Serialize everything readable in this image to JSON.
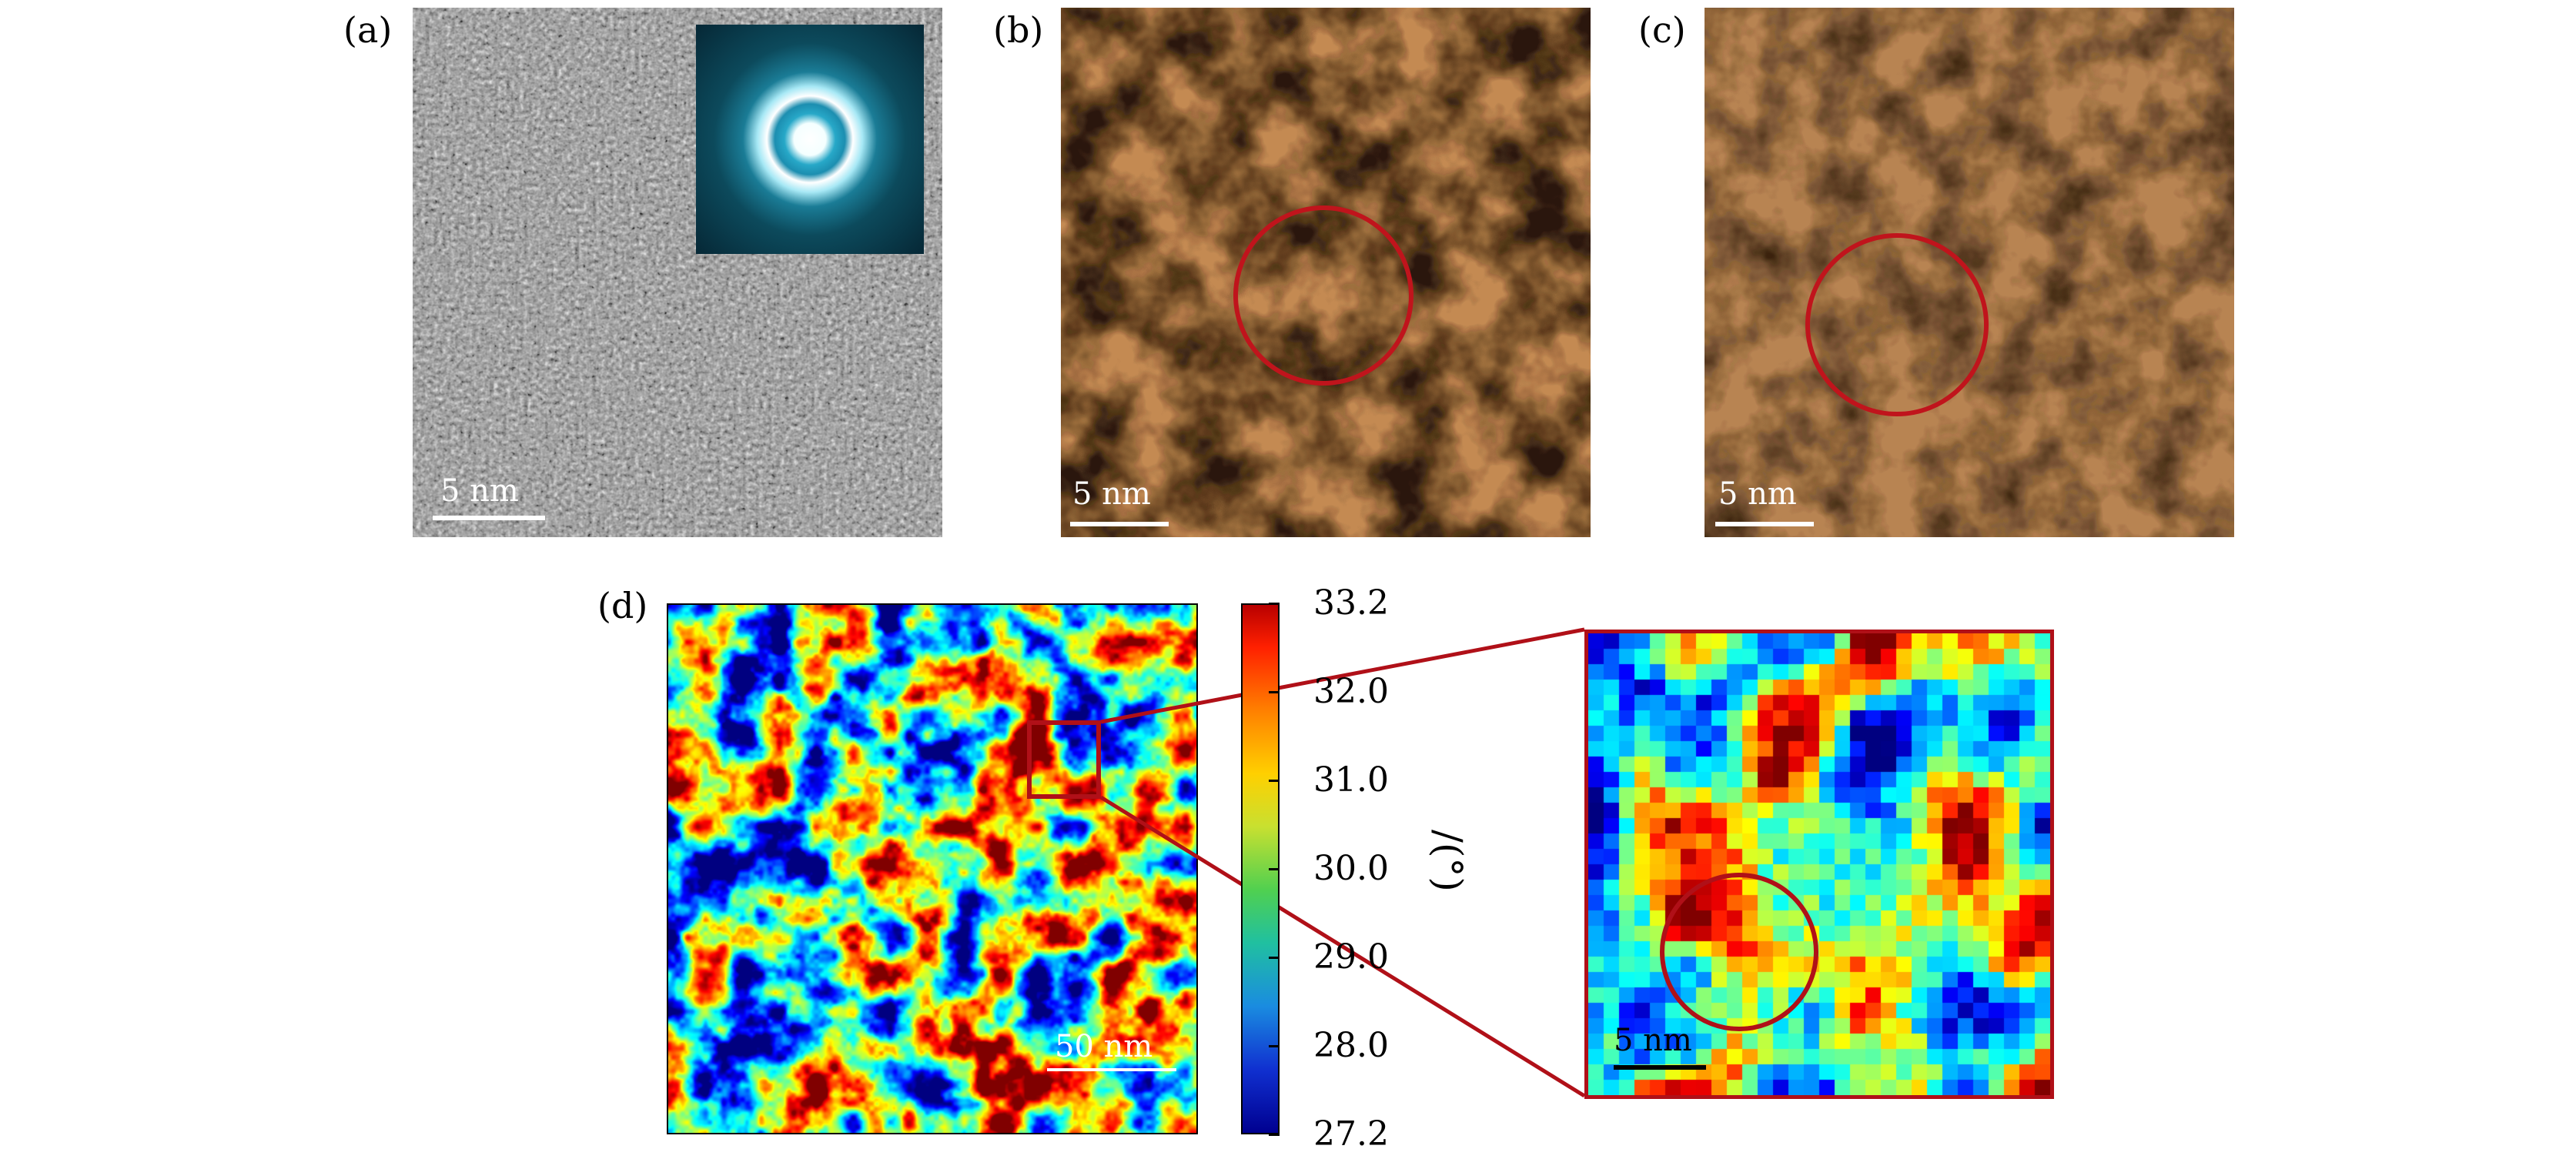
{
  "panels": {
    "a": {
      "label": "(a)",
      "scale": "5 nm"
    },
    "b": {
      "label": "(b)",
      "scale": "5 nm"
    },
    "c": {
      "label": "(c)",
      "scale": "5 nm"
    },
    "d": {
      "label": "(d)",
      "scale_main": "50 nm",
      "scale_zoom": "5 nm"
    }
  },
  "colorbar": {
    "title": "/(°)",
    "ticks": [
      "33.2",
      "32.0",
      "31.0",
      "30.0",
      "29.0",
      "28.0",
      "27.2"
    ],
    "colormap": "jet"
  },
  "colors": {
    "annotation_red": "#c0141c",
    "tem_copper": "#c08850",
    "background": "#ffffff"
  }
}
